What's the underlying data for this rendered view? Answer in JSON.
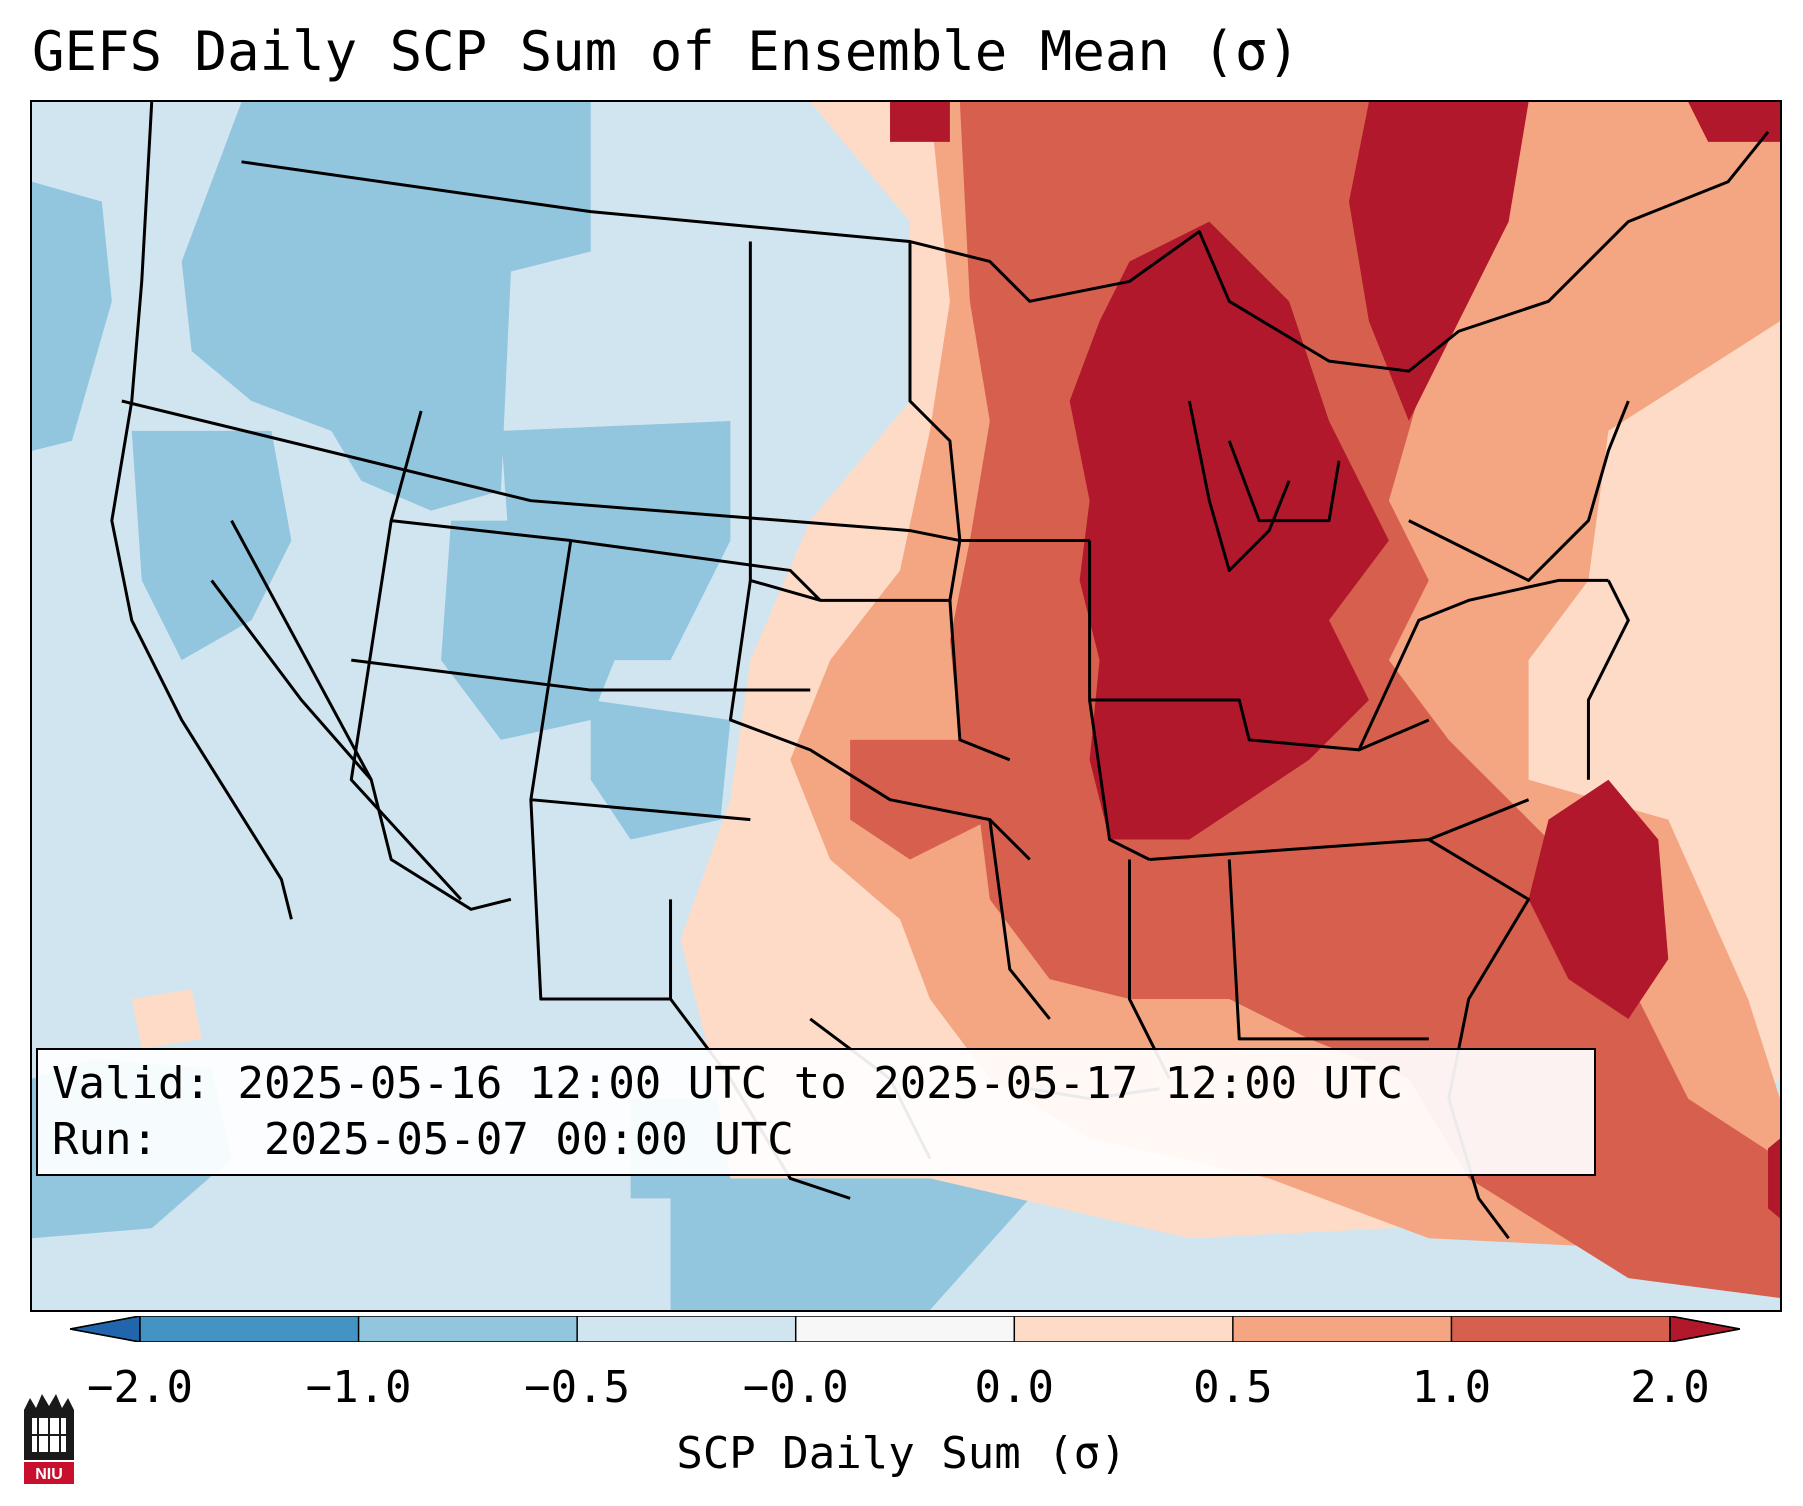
{
  "title": "GEFS Daily SCP Sum of Ensemble Mean (σ)",
  "info": {
    "valid_label": "Valid:",
    "valid_text": "2025-05-16 12:00 UTC to 2025-05-17 12:00 UTC",
    "run_label": "Run:",
    "run_text": "2025-05-07 00:00 UTC"
  },
  "colorbar": {
    "label": "SCP Daily Sum (σ)",
    "tick_labels": [
      "−2.0",
      "−1.0",
      "−0.5",
      "−0.0",
      "0.0",
      "0.5",
      "1.0",
      "2.0"
    ],
    "bins": [
      {
        "color": "#4393c3"
      },
      {
        "color": "#92c5de"
      },
      {
        "color": "#d1e5f0"
      },
      {
        "color": "#f7f7f7"
      },
      {
        "color": "#fddbc7"
      },
      {
        "color": "#f4a582"
      },
      {
        "color": "#d6604d"
      }
    ],
    "under_color": "#2166ac",
    "over_color": "#b2182b"
  },
  "logo": {
    "text": "NIU",
    "color": "#c8102e"
  },
  "colors": {
    "strong_negative": "#92c5de",
    "weak_negative": "#d1e5f0",
    "weak_positive": "#fddbc7",
    "moderate_positive": "#f4a582",
    "high_positive": "#d6604d",
    "extreme_positive": "#b2182b"
  }
}
